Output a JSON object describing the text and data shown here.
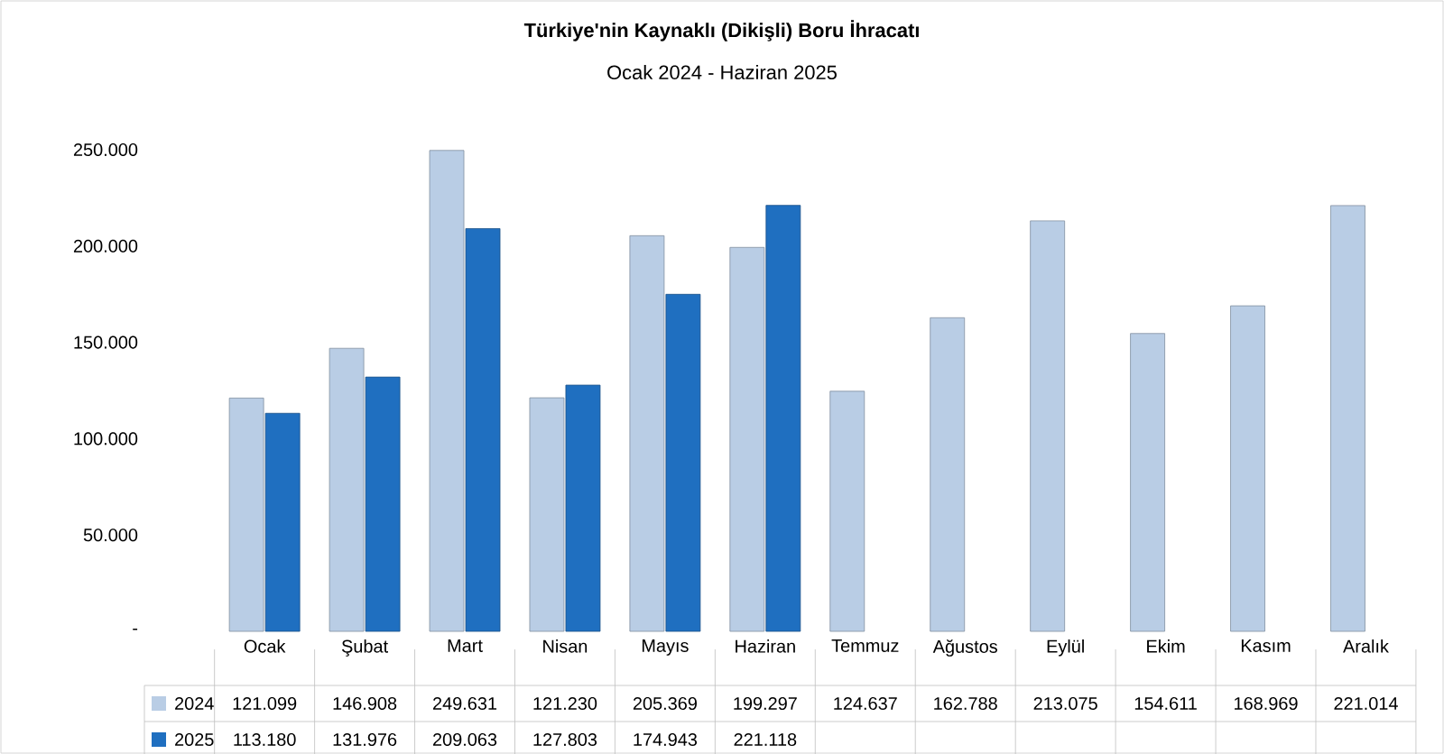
{
  "chart_data": {
    "type": "bar",
    "title": "Türkiye'nin Kaynaklı (Dikişli) Boru İhracatı",
    "subtitle": "Ocak 2024 - Haziran 2025",
    "categories": [
      "Ocak",
      "Şubat",
      "Mart",
      "Nisan",
      "Mayıs",
      "Haziran",
      "Temmuz",
      "Ağustos",
      "Eylül",
      "Ekim",
      "Kasım",
      "Aralık"
    ],
    "series": [
      {
        "name": "2024",
        "color": "#b9cde5",
        "values": [
          121099,
          146908,
          249631,
          121230,
          205369,
          199297,
          124637,
          162788,
          213075,
          154611,
          168969,
          221014
        ],
        "value_labels": [
          "121.099",
          "146.908",
          "249.631",
          "121.230",
          "205.369",
          "199.297",
          "124.637",
          "162.788",
          "213.075",
          "154.611",
          "168.969",
          "221.014"
        ]
      },
      {
        "name": "2025",
        "color": "#1f6fc0",
        "values": [
          113180,
          131976,
          209063,
          127803,
          174943,
          221118,
          null,
          null,
          null,
          null,
          null,
          null
        ],
        "value_labels": [
          "113.180",
          "131.976",
          "209.063",
          "127.803",
          "174.943",
          "221.118",
          null,
          null,
          null,
          null,
          null,
          null
        ]
      }
    ],
    "ylim": [
      0,
      250000
    ],
    "yticks": [
      {
        "value": 0,
        "label": "-"
      },
      {
        "value": 50000,
        "label": "50.000"
      },
      {
        "value": 100000,
        "label": "100.000"
      },
      {
        "value": 150000,
        "label": "150.000"
      },
      {
        "value": 200000,
        "label": "200.000"
      },
      {
        "value": 250000,
        "label": "250.000"
      }
    ],
    "grid": false,
    "legend": "bottom"
  }
}
